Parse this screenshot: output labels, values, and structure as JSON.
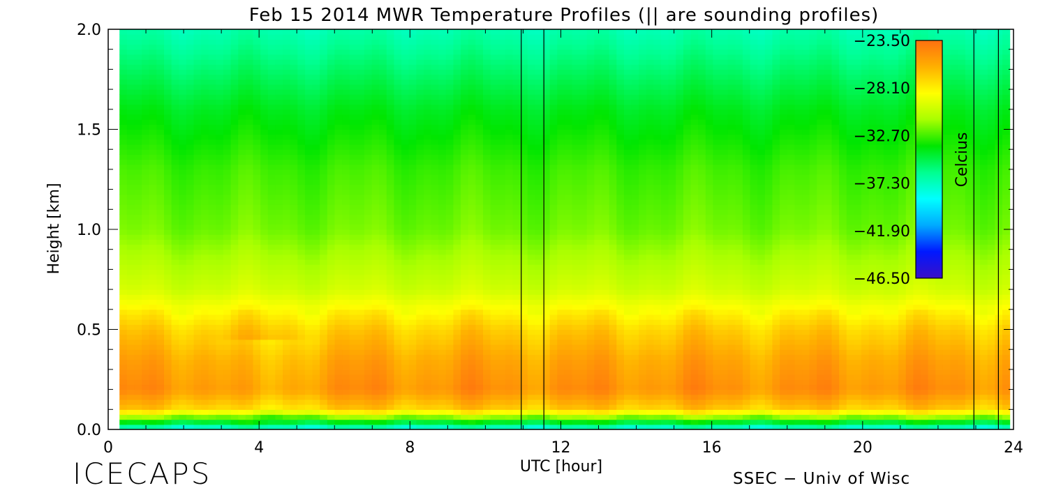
{
  "chart_data": {
    "type": "heatmap",
    "title": "Feb 15 2014 MWR Temperature Profiles (|| are sounding profiles)",
    "xlabel": "UTC [hour]",
    "ylabel": "Height [km]",
    "xlim": [
      0,
      24
    ],
    "ylim": [
      0.0,
      2.0
    ],
    "x_ticks": [
      "0",
      "4",
      "8",
      "12",
      "16",
      "20",
      "24"
    ],
    "x_tick_values": [
      0,
      4,
      8,
      12,
      16,
      20,
      24
    ],
    "y_ticks": [
      "0.0",
      "0.5",
      "1.0",
      "1.5",
      "2.0"
    ],
    "y_tick_values": [
      0.0,
      0.5,
      1.0,
      1.5,
      2.0
    ],
    "data_time_range": [
      0.3,
      23.9
    ],
    "sounding_times": [
      10.95,
      11.55,
      22.95,
      23.6
    ],
    "colorbar": {
      "label": "Celcius",
      "range": [
        -46.5,
        -23.5
      ],
      "tick_values": [
        -23.5,
        -28.1,
        -32.7,
        -37.3,
        -41.9,
        -46.5
      ],
      "tick_labels": [
        "−23.50",
        "−28.10",
        "−32.70",
        "−37.30",
        "−41.90",
        "−46.50"
      ],
      "colormap": [
        "#3a10c8",
        "#0018ff",
        "#00aaff",
        "#00ffff",
        "#00ff90",
        "#00e600",
        "#a8ff00",
        "#ffff00",
        "#ffb000",
        "#ff7010"
      ]
    },
    "profile_summary": {
      "height_km": [
        0.0,
        0.05,
        0.1,
        0.2,
        0.35,
        0.5,
        0.7,
        1.0,
        1.3,
        1.6,
        2.0
      ],
      "temperature_c": [
        -38.5,
        -33.0,
        -27.0,
        -24.8,
        -25.6,
        -27.0,
        -30.0,
        -32.0,
        -32.8,
        -34.2,
        -37.0
      ]
    }
  },
  "branding": {
    "logo": "ICECAPS",
    "credit": "SSEC − Univ of Wisc"
  }
}
